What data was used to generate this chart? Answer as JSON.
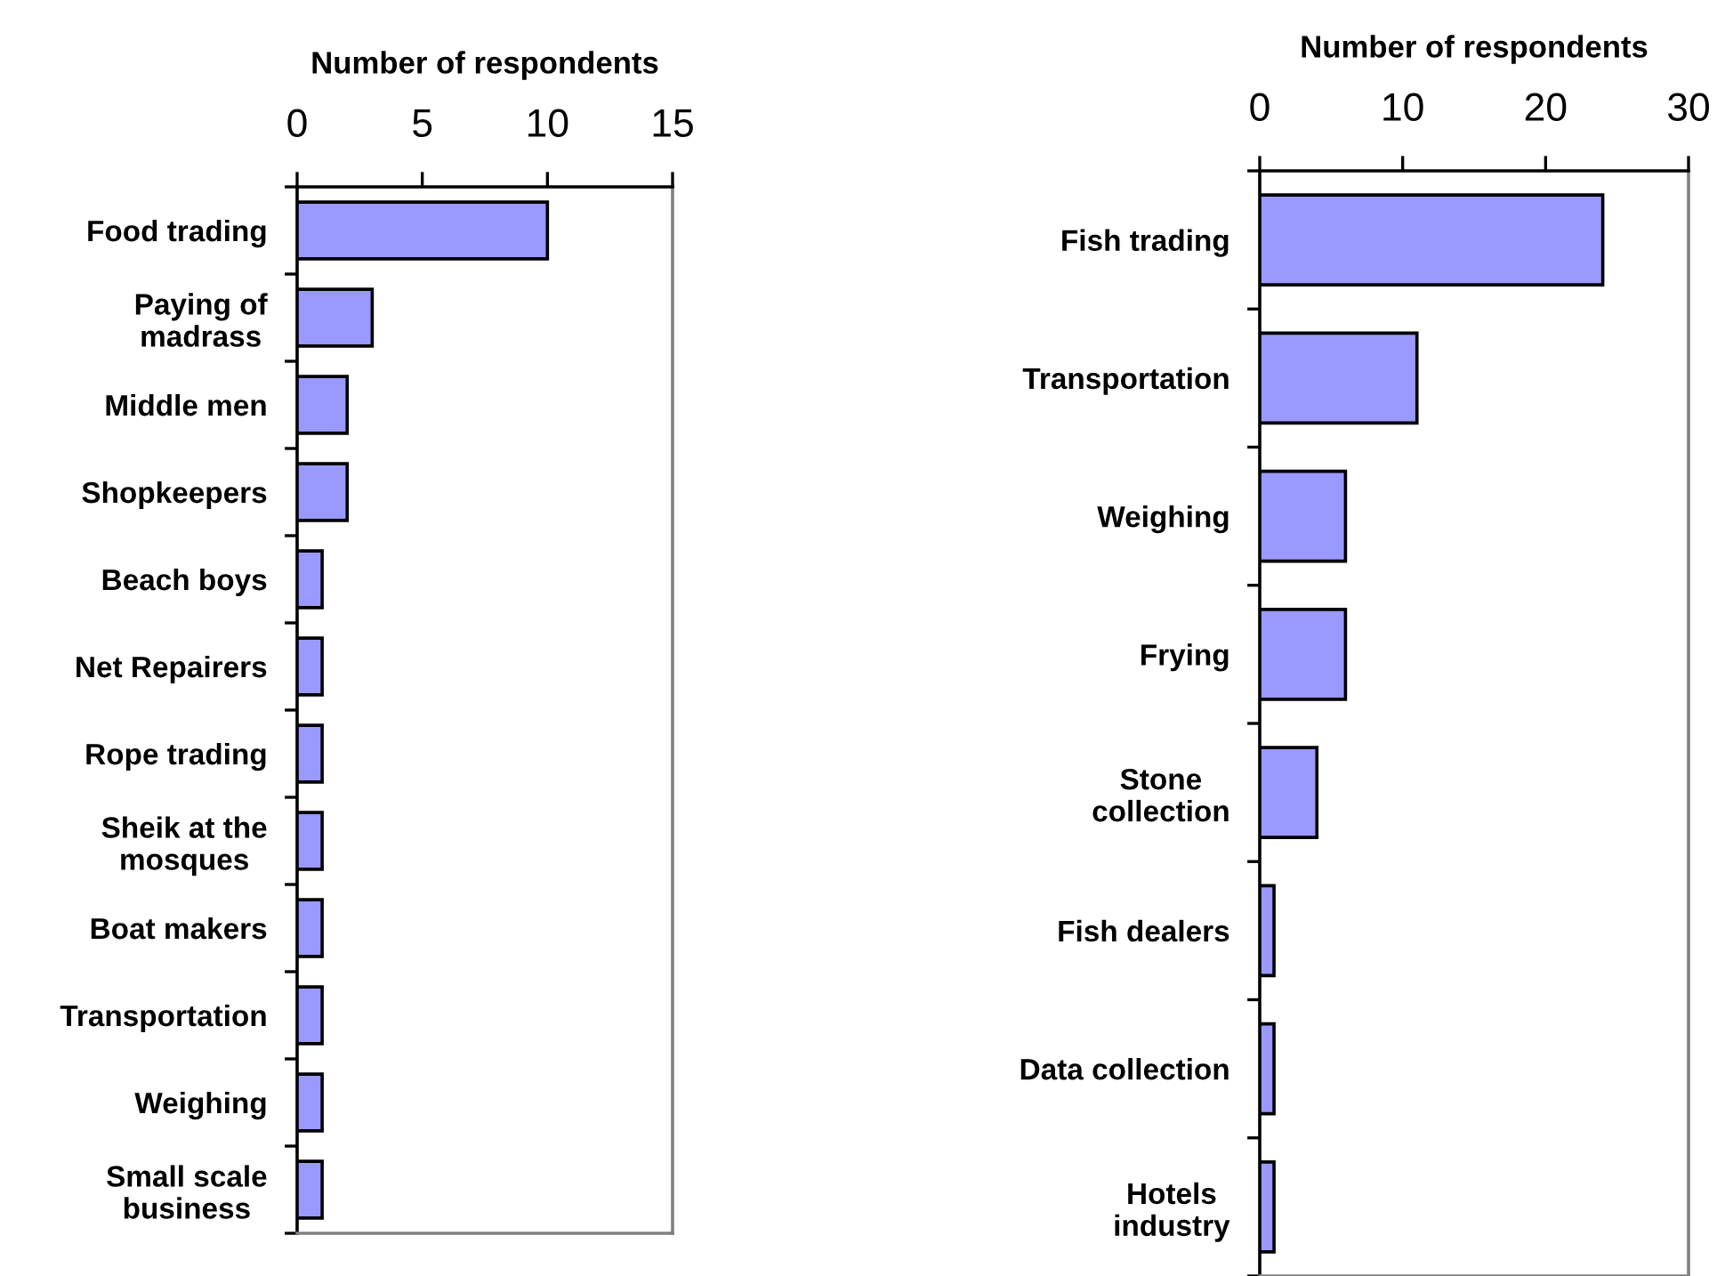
{
  "chart_data": [
    {
      "type": "bar",
      "orientation": "horizontal",
      "xlabel": "Number of respondents",
      "categories": [
        "Food trading",
        "Paying of\nmadrass",
        "Middle men",
        "Shopkeepers",
        "Beach boys",
        "Net Repairers",
        "Rope trading",
        "Sheik at the\nmosques",
        "Boat makers",
        "Transportation",
        "Weighing",
        "Small scale\nbusiness"
      ],
      "values": [
        10,
        3,
        2,
        2,
        1,
        1,
        1,
        1,
        1,
        1,
        1,
        1
      ],
      "color": "#9999ff",
      "xlim": [
        0,
        15
      ],
      "xticks": [
        0,
        5,
        10,
        15
      ]
    },
    {
      "type": "bar",
      "orientation": "horizontal",
      "xlabel": "Number of respondents",
      "categories": [
        "Fish trading",
        "Transportation",
        "Weighing",
        "Frying",
        "Stone\ncollection",
        "Fish dealers",
        "Data collection",
        "Hotels\nindustry"
      ],
      "values": [
        24,
        11,
        6,
        6,
        4,
        1,
        1,
        1
      ],
      "color": "#9999ff",
      "xlim": [
        0,
        30
      ],
      "xticks": [
        0,
        10,
        20,
        30
      ]
    }
  ]
}
